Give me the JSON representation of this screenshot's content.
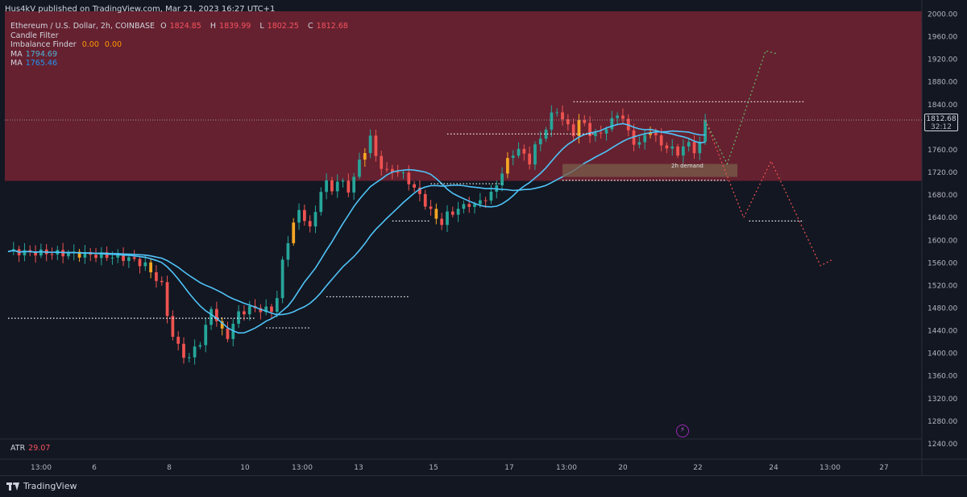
{
  "publisher_line": "Hus4kV published on TradingView.com, Mar 21, 2023 16:27 UTC+1",
  "legend": {
    "symbol": "Ethereum / U.S. Dollar, 2h, COINBASE",
    "ohlc": {
      "o_label": "O",
      "o": "1824.85",
      "h_label": "H",
      "h": "1839.99",
      "l_label": "L",
      "l": "1802.25",
      "c_label": "C",
      "c": "1812.68"
    },
    "candle_filter": "Candle Filter",
    "imbalance": {
      "label": "Imbalance Finder",
      "v1": "0.00",
      "v2": "0.00"
    },
    "ma1": {
      "label": "MA",
      "value": "1794.69"
    },
    "ma2": {
      "label": "MA",
      "value": "1765.46"
    }
  },
  "atr": {
    "label": "ATR",
    "value": "29.07"
  },
  "last_price": {
    "value": "1812.68",
    "countdown": "32:12"
  },
  "zone_label": "2h demand",
  "brand": "TradingView",
  "colors": {
    "up": "#26a69a",
    "down": "#ef5350",
    "ma": "#4fc3f7",
    "zone": "#652130",
    "bg": "#131722"
  },
  "chart_data": {
    "type": "candlestick",
    "y_ticks": [
      "2000.00",
      "1960.00",
      "1920.00",
      "1880.00",
      "1840.00",
      "1800.00",
      "1760.00",
      "1720.00",
      "1680.00",
      "1640.00",
      "1600.00",
      "1560.00",
      "1520.00",
      "1480.00",
      "1440.00",
      "1400.00",
      "1360.00",
      "1320.00",
      "1280.00",
      "1240.00"
    ],
    "x_ticks": [
      "13:00",
      "6",
      "8",
      "10",
      "13:00",
      "13",
      "15",
      "17",
      "13:00",
      "20",
      "22",
      "24",
      "13:00",
      "27"
    ],
    "ylim": [
      1210,
      2005
    ],
    "supply_zone": [
      1705,
      2005
    ],
    "demand_zone": [
      1712,
      1735
    ],
    "close_path": [
      [
        0,
        1580
      ],
      [
        6,
        1578
      ],
      [
        12,
        1576
      ],
      [
        18,
        1572
      ],
      [
        22,
        1568
      ],
      [
        25,
        1556
      ],
      [
        28,
        1520
      ],
      [
        29,
        1470
      ],
      [
        30,
        1430
      ],
      [
        31,
        1412
      ],
      [
        32,
        1398
      ],
      [
        33,
        1390
      ],
      [
        34,
        1410
      ],
      [
        35,
        1420
      ],
      [
        36,
        1445
      ],
      [
        37,
        1480
      ],
      [
        38,
        1460
      ],
      [
        39,
        1438
      ],
      [
        40,
        1430
      ],
      [
        41,
        1452
      ],
      [
        42,
        1470
      ],
      [
        44,
        1480
      ],
      [
        46,
        1478
      ],
      [
        48,
        1476
      ],
      [
        49,
        1500
      ],
      [
        50,
        1560
      ],
      [
        51,
        1600
      ],
      [
        52,
        1630
      ],
      [
        53,
        1650
      ],
      [
        54,
        1640
      ],
      [
        55,
        1620
      ],
      [
        56,
        1650
      ],
      [
        57,
        1690
      ],
      [
        58,
        1700
      ],
      [
        59,
        1690
      ],
      [
        60,
        1705
      ],
      [
        61,
        1700
      ],
      [
        62,
        1690
      ],
      [
        63,
        1710
      ],
      [
        64,
        1740
      ],
      [
        65,
        1760
      ],
      [
        66,
        1780
      ],
      [
        67,
        1750
      ],
      [
        68,
        1730
      ],
      [
        69,
        1720
      ],
      [
        70,
        1725
      ],
      [
        71,
        1720
      ],
      [
        72,
        1715
      ],
      [
        73,
        1705
      ],
      [
        74,
        1690
      ],
      [
        75,
        1680
      ],
      [
        76,
        1665
      ],
      [
        77,
        1650
      ],
      [
        78,
        1640
      ],
      [
        79,
        1630
      ],
      [
        80,
        1645
      ],
      [
        81,
        1650
      ],
      [
        82,
        1655
      ],
      [
        83,
        1660
      ],
      [
        84,
        1665
      ],
      [
        85,
        1660
      ],
      [
        86,
        1670
      ],
      [
        87,
        1675
      ],
      [
        88,
        1680
      ],
      [
        89,
        1700
      ],
      [
        90,
        1720
      ],
      [
        91,
        1740
      ],
      [
        92,
        1755
      ],
      [
        93,
        1760
      ],
      [
        94,
        1750
      ],
      [
        95,
        1740
      ],
      [
        96,
        1765
      ],
      [
        97,
        1780
      ],
      [
        98,
        1800
      ],
      [
        99,
        1820
      ],
      [
        100,
        1830
      ],
      [
        101,
        1815
      ],
      [
        102,
        1800
      ],
      [
        103,
        1790
      ],
      [
        104,
        1810
      ],
      [
        105,
        1805
      ],
      [
        106,
        1790
      ],
      [
        107,
        1785
      ],
      [
        108,
        1790
      ],
      [
        109,
        1800
      ],
      [
        110,
        1810
      ],
      [
        111,
        1825
      ],
      [
        112,
        1815
      ],
      [
        113,
        1790
      ],
      [
        114,
        1775
      ],
      [
        115,
        1770
      ],
      [
        116,
        1785
      ],
      [
        117,
        1795
      ],
      [
        118,
        1780
      ],
      [
        119,
        1770
      ],
      [
        120,
        1765
      ],
      [
        121,
        1760
      ],
      [
        122,
        1755
      ],
      [
        123,
        1765
      ],
      [
        124,
        1770
      ],
      [
        125,
        1760
      ],
      [
        126,
        1770
      ],
      [
        127,
        1812.68
      ]
    ]
  }
}
